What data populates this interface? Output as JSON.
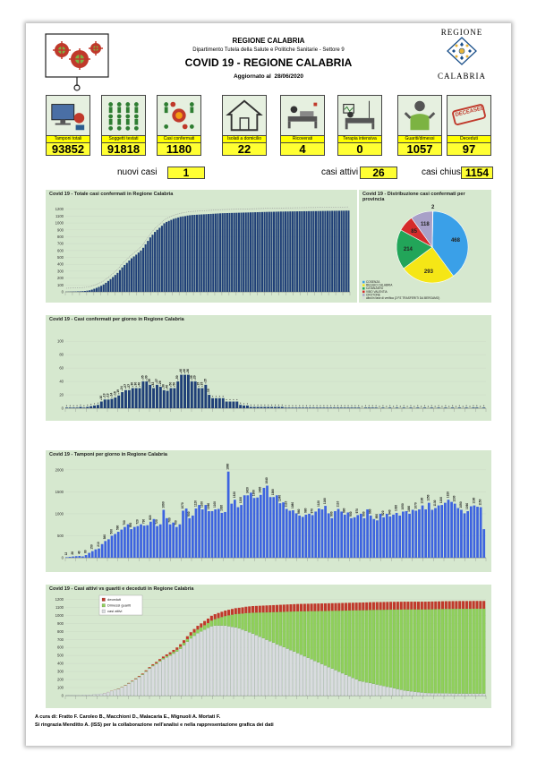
{
  "header": {
    "region": "REGIONE CALABRIA",
    "department": "Dipartimento Tutela della Salute e Politiche Sanitarie - Settore 9",
    "title": "COVID 19 - REGIONE CALABRIA",
    "updated_label": "Aggiornato al",
    "updated_date": "28/06/2020",
    "logo_top": "REGIONE",
    "logo_bottom": "CALABRIA"
  },
  "kpis": [
    {
      "label": "Tamponi totali",
      "value": "93852",
      "icon": "lab-computer-icon"
    },
    {
      "label": "Soggetti testati",
      "value": "91818",
      "icon": "people-grid-icon"
    },
    {
      "label": "Casi confermati",
      "value": "1180",
      "icon": "virus-people-icon"
    },
    {
      "label": "Isolati a domicilio",
      "value": "22",
      "icon": "house-icon"
    },
    {
      "label": "Ricoverati",
      "value": "4",
      "icon": "hospital-bed-icon"
    },
    {
      "label": "Terapia intensiva",
      "value": "0",
      "icon": "icu-bed-icon"
    },
    {
      "label": "Guariti/dimessi",
      "value": "1057",
      "icon": "healed-person-icon"
    },
    {
      "label": "Deceduti",
      "value": "97",
      "icon": "deceased-stamp-icon",
      "stamp": "DECEASED"
    }
  ],
  "summary": {
    "new_label": "nuovi casi",
    "new_value": "1",
    "active_label": "casi attivi",
    "active_value": "26",
    "closed_label": "casi chiusi",
    "closed_value": "1154"
  },
  "colors": {
    "bar_dark": "#1f3f77",
    "bar_blue": "#3d63e0",
    "green": "#8fd05a",
    "grey": "#d9dcdf",
    "deceased": "#c0392b",
    "panel": "#d6e8cf"
  },
  "chart_data": [
    {
      "id": "cumulative",
      "type": "bar",
      "title": "Covid 19 - Totale casi confermati in Regione Calabria",
      "yticks": [
        0,
        100,
        200,
        300,
        400,
        500,
        600,
        700,
        800,
        900,
        1000,
        1100,
        1200
      ],
      "ylim": [
        0,
        1300
      ],
      "days": 122,
      "values": [
        1,
        2,
        3,
        4,
        5,
        7,
        8,
        10,
        13,
        17,
        22,
        32,
        45,
        58,
        72,
        88,
        107,
        131,
        158,
        185,
        215,
        245,
        275,
        315,
        355,
        390,
        420,
        455,
        487,
        514,
        540,
        570,
        600,
        640,
        690,
        740,
        790,
        830,
        870,
        900,
        930,
        960,
        995,
        1015,
        1030,
        1045,
        1060,
        1070,
        1080,
        1090,
        1095,
        1100,
        1108,
        1112,
        1116,
        1118,
        1120,
        1122,
        1124,
        1126,
        1128,
        1130,
        1132,
        1134,
        1136,
        1138,
        1140,
        1142,
        1143,
        1144,
        1145,
        1146,
        1147,
        1148,
        1149,
        1150,
        1151,
        1152,
        1153,
        1154,
        1155,
        1156,
        1157,
        1158,
        1159,
        1160,
        1161,
        1162,
        1162,
        1163,
        1164,
        1165,
        1166,
        1166,
        1167,
        1167,
        1168,
        1168,
        1169,
        1169,
        1170,
        1170,
        1171,
        1171,
        1172,
        1172,
        1173,
        1173,
        1174,
        1174,
        1175,
        1175,
        1176,
        1176,
        1177,
        1177,
        1178,
        1178,
        1179,
        1179,
        1180,
        1180
      ]
    },
    {
      "id": "province",
      "type": "pie",
      "title": "Covid 19 - Distribuzione casi confermati per provincia",
      "values": [
        468,
        293,
        214,
        85,
        118,
        2
      ],
      "slice_labels": [
        "468",
        "293",
        "214",
        "85",
        "118",
        "2"
      ],
      "legend": [
        "COSENZA",
        "REGGIO CALABRIA",
        "CATANZARO",
        "VIBO VALENTIA",
        "CROTONE",
        "altro/in fase di verifica (2 PZ TRASFERITI DA BERGAMO)"
      ],
      "slice_colors": [
        "#3aa0e8",
        "#f5e616",
        "#22a559",
        "#d52b2b",
        "#a8a0c8",
        "#d9d9d9"
      ]
    },
    {
      "id": "daily_cases",
      "type": "bar",
      "title": "Covid 19 - Casi confermati per giorno in Regione Calabria",
      "yticks": [
        0,
        20,
        40,
        60,
        80,
        100
      ],
      "ylim": [
        0,
        115
      ],
      "values": [
        1,
        1,
        1,
        1,
        2,
        1,
        2,
        3,
        4,
        5,
        10,
        13,
        13,
        14,
        16,
        19,
        24,
        27,
        27,
        30,
        30,
        30,
        40,
        40,
        35,
        30,
        35,
        32,
        27,
        26,
        30,
        30,
        40,
        50,
        50,
        50,
        40,
        40,
        30,
        30,
        35,
        20,
        15,
        15,
        15,
        15,
        10,
        10,
        10,
        10,
        5,
        4,
        4,
        2,
        2,
        2,
        2,
        2,
        2,
        2,
        2,
        2,
        2,
        1,
        1,
        1,
        1,
        1,
        1,
        1,
        1,
        1,
        1,
        1,
        1,
        1,
        1,
        1,
        1,
        1,
        1,
        1,
        1,
        1,
        1,
        0,
        1,
        1,
        1,
        1,
        0,
        1,
        0,
        1,
        0,
        1,
        0,
        1,
        0,
        1,
        0,
        1,
        0,
        1,
        0,
        1,
        0,
        1,
        0,
        1,
        0,
        1,
        0,
        1,
        0,
        1,
        0,
        1,
        1,
        0,
        1
      ],
      "labels_shown": [
        "10",
        "13",
        "13",
        "14",
        "16",
        "19",
        "24",
        "27",
        "27",
        "30",
        "30",
        "40",
        "35",
        "30",
        "35",
        "32",
        "27",
        "26",
        "30",
        "40",
        "50",
        "50",
        "50",
        "40",
        "40",
        "30",
        "35",
        "20",
        "15",
        "15",
        "15",
        "10"
      ]
    },
    {
      "id": "daily_swabs",
      "type": "bar",
      "title": "Covid 19 - Tamponi per giorno in Regione Calabria",
      "yticks": [
        0,
        500,
        1000,
        1500,
        2000
      ],
      "ylim": [
        0,
        2200
      ],
      "values": [
        12,
        20,
        28,
        35,
        40,
        30,
        60,
        110,
        150,
        190,
        210,
        310,
        380,
        420,
        500,
        540,
        590,
        640,
        700,
        760,
        650,
        700,
        720,
        760,
        730,
        740,
        820,
        880,
        720,
        760,
        1090,
        900,
        760,
        800,
        700,
        760,
        1070,
        1120,
        900,
        960,
        1120,
        1200,
        1100,
        1200,
        1060,
        1060,
        1100,
        1110,
        1020,
        1040,
        1960,
        1230,
        1320,
        1150,
        1200,
        1420,
        1420,
        1480,
        1360,
        1370,
        1430,
        1590,
        1640,
        1380,
        1380,
        1420,
        1240,
        1260,
        1110,
        1070,
        1080,
        1010,
        960,
        930,
        980,
        1000,
        970,
        1050,
        1120,
        1100,
        1180,
        1010,
        900,
        1060,
        1110,
        1050,
        980,
        1030,
        900,
        920,
        970,
        1000,
        900,
        1100,
        960,
        880,
        850,
        1000,
        920,
        1000,
        940,
        980,
        1020,
        960,
        1050,
        1060,
        1000,
        1090,
        1070,
        1100,
        1190,
        1100,
        1250,
        1090,
        1130,
        1190,
        1200,
        1250,
        1320,
        1270,
        1230,
        1130,
        1090,
        1010,
        1060,
        1170,
        1190,
        1160,
        1150,
        650
      ]
    },
    {
      "id": "active_vs",
      "type": "bar",
      "title": "Covid 19 - Casi attivi vs guariti e deceduti in Regione Calabria",
      "yticks": [
        0,
        100,
        200,
        300,
        400,
        500,
        600,
        700,
        800,
        900,
        1000,
        1100,
        1200
      ],
      "ylim": [
        0,
        1250
      ],
      "legend": [
        "deceduti",
        "Dimessi guariti",
        "casi attivi"
      ],
      "series": [
        {
          "name": "deceduti",
          "values": [
            0,
            0,
            0,
            0,
            0,
            0,
            0,
            0,
            0,
            0,
            0,
            1,
            1,
            2,
            2,
            3,
            3,
            4,
            5,
            6,
            7,
            8,
            9,
            10,
            12,
            14,
            16,
            18,
            20,
            22,
            24,
            26,
            28,
            30,
            33,
            36,
            40,
            43,
            46,
            50,
            53,
            56,
            60,
            62,
            64,
            66,
            68,
            70,
            72,
            74,
            76,
            78,
            80,
            82,
            83,
            84,
            85,
            86,
            87,
            88,
            88,
            89,
            89,
            90,
            90,
            91,
            91,
            92,
            92,
            93,
            93,
            93,
            94,
            94,
            94,
            95,
            95,
            95,
            95,
            96,
            96,
            96,
            96,
            96,
            96,
            97,
            97,
            97,
            97,
            97,
            97,
            97,
            97,
            97,
            97,
            97,
            97,
            97,
            97,
            97,
            97,
            97,
            97,
            97,
            97,
            97,
            97,
            97,
            97,
            97,
            97,
            97,
            97,
            97,
            97,
            97,
            97,
            97,
            97,
            97,
            97,
            97
          ]
        },
        {
          "name": "Dimessi guariti",
          "values": [
            0,
            0,
            0,
            0,
            0,
            0,
            0,
            0,
            0,
            0,
            0,
            0,
            0,
            0,
            0,
            1,
            1,
            2,
            2,
            3,
            3,
            4,
            5,
            6,
            7,
            8,
            10,
            12,
            14,
            16,
            18,
            20,
            22,
            25,
            28,
            32,
            36,
            40,
            45,
            50,
            55,
            60,
            70,
            80,
            92,
            105,
            120,
            135,
            150,
            165,
            180,
            200,
            220,
            240,
            260,
            280,
            300,
            320,
            340,
            360,
            380,
            400,
            420,
            440,
            460,
            480,
            500,
            520,
            540,
            560,
            580,
            600,
            620,
            640,
            660,
            680,
            700,
            720,
            740,
            760,
            780,
            800,
            820,
            840,
            860,
            880,
            890,
            900,
            910,
            920,
            930,
            940,
            950,
            960,
            970,
            980,
            990,
            1000,
            1010,
            1015,
            1020,
            1025,
            1030,
            1035,
            1040,
            1042,
            1044,
            1046,
            1048,
            1050,
            1051,
            1052,
            1053,
            1054,
            1055,
            1055,
            1056,
            1056,
            1057,
            1057,
            1057,
            1057
          ]
        },
        {
          "name": "casi attivi",
          "values": [
            1,
            2,
            3,
            4,
            5,
            7,
            8,
            10,
            13,
            17,
            22,
            31,
            44,
            56,
            70,
            84,
            103,
            125,
            151,
            176,
            205,
            233,
            261,
            299,
            336,
            368,
            394,
            425,
            453,
            476,
            498,
            524,
            550,
            585,
            629,
            672,
            714,
            747,
            779,
            800,
            822,
            844,
            865,
            873,
            874,
            874,
            872,
            865,
            858,
            851,
            839,
            822,
            808,
            790,
            773,
            754,
            735,
            716,
            697,
            678,
            660,
            641,
            623,
            604,
            586,
            567,
            549,
            530,
            511,
            491,
            472,
            453,
            433,
            414,
            395,
            375,
            356,
            337,
            318,
            298,
            279,
            260,
            241,
            222,
            203,
            183,
            174,
            165,
            157,
            148,
            139,
            129,
            120,
            111,
            102,
            92,
            83,
            73,
            64,
            59,
            54,
            49,
            44,
            39,
            34,
            33,
            32,
            31,
            30,
            29,
            29,
            28,
            28,
            27,
            27,
            27,
            26,
            26,
            26,
            26,
            26,
            26
          ]
        }
      ]
    }
  ],
  "footer": {
    "line1": "A cura di: Fratto F. Caroleo B., Macchioni D., Malacaria E., Mignuoli A. Mortati F.",
    "line2": "Si ringrazia Menditto A. (ISS) per la collaborazione nell'analisi e nella rappresentazione grafica dei dati"
  }
}
